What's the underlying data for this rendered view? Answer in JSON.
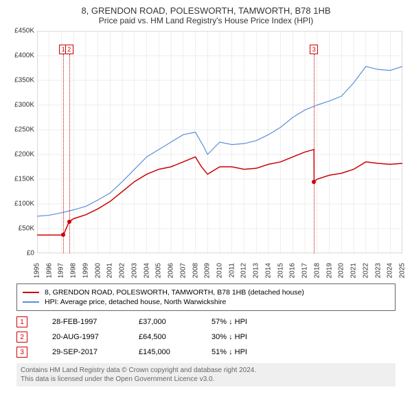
{
  "title": "8, GRENDON ROAD, POLESWORTH, TAMWORTH, B78 1HB",
  "subtitle": "Price paid vs. HM Land Registry's House Price Index (HPI)",
  "chart": {
    "type": "line",
    "background_color": "#ffffff",
    "plot_border_color": "#888888",
    "grid_color": "#dddddd",
    "y_axis": {
      "min": 0,
      "max": 450000,
      "tick_step": 50000,
      "labels": [
        "£0",
        "£50K",
        "£100K",
        "£150K",
        "£200K",
        "£250K",
        "£300K",
        "£350K",
        "£400K",
        "£450K"
      ],
      "label_fontsize": 10
    },
    "x_axis": {
      "years": [
        1995,
        1996,
        1997,
        1998,
        1999,
        2000,
        2001,
        2002,
        2003,
        2004,
        2005,
        2006,
        2007,
        2008,
        2009,
        2010,
        2011,
        2012,
        2013,
        2014,
        2015,
        2016,
        2017,
        2018,
        2019,
        2020,
        2021,
        2022,
        2023,
        2024,
        2025
      ],
      "label_fontsize": 10
    },
    "series": [
      {
        "name": "price_paid",
        "label": "8, GRENDON ROAD, POLESWORTH, TAMWORTH, B78 1HB (detached house)",
        "color": "#cc0000",
        "line_width": 1.5,
        "points": [
          [
            1995,
            37000
          ],
          [
            1996,
            37000
          ],
          [
            1997.16,
            37000
          ],
          [
            1997.64,
            64500
          ],
          [
            1998,
            70000
          ],
          [
            1999,
            78000
          ],
          [
            2000,
            90000
          ],
          [
            2001,
            105000
          ],
          [
            2002,
            125000
          ],
          [
            2003,
            145000
          ],
          [
            2004,
            160000
          ],
          [
            2005,
            170000
          ],
          [
            2006,
            175000
          ],
          [
            2007,
            185000
          ],
          [
            2008,
            195000
          ],
          [
            2008.5,
            175000
          ],
          [
            2009,
            160000
          ],
          [
            2010,
            175000
          ],
          [
            2011,
            175000
          ],
          [
            2012,
            170000
          ],
          [
            2013,
            172000
          ],
          [
            2014,
            180000
          ],
          [
            2015,
            185000
          ],
          [
            2016,
            195000
          ],
          [
            2017,
            205000
          ],
          [
            2017.74,
            210000
          ],
          [
            2017.75,
            145000
          ],
          [
            2018,
            150000
          ],
          [
            2019,
            158000
          ],
          [
            2020,
            162000
          ],
          [
            2021,
            170000
          ],
          [
            2022,
            185000
          ],
          [
            2023,
            182000
          ],
          [
            2024,
            180000
          ],
          [
            2025,
            182000
          ]
        ]
      },
      {
        "name": "hpi",
        "label": "HPI: Average price, detached house, North Warwickshire",
        "color": "#5b8fd6",
        "line_width": 1.2,
        "points": [
          [
            1995,
            75000
          ],
          [
            1996,
            77000
          ],
          [
            1997,
            82000
          ],
          [
            1998,
            88000
          ],
          [
            1999,
            95000
          ],
          [
            2000,
            108000
          ],
          [
            2001,
            122000
          ],
          [
            2002,
            145000
          ],
          [
            2003,
            170000
          ],
          [
            2004,
            195000
          ],
          [
            2005,
            210000
          ],
          [
            2006,
            225000
          ],
          [
            2007,
            240000
          ],
          [
            2008,
            245000
          ],
          [
            2008.7,
            215000
          ],
          [
            2009,
            200000
          ],
          [
            2010,
            225000
          ],
          [
            2011,
            220000
          ],
          [
            2012,
            222000
          ],
          [
            2013,
            228000
          ],
          [
            2014,
            240000
          ],
          [
            2015,
            255000
          ],
          [
            2016,
            275000
          ],
          [
            2017,
            290000
          ],
          [
            2018,
            300000
          ],
          [
            2019,
            308000
          ],
          [
            2020,
            318000
          ],
          [
            2021,
            345000
          ],
          [
            2022,
            378000
          ],
          [
            2023,
            372000
          ],
          [
            2024,
            370000
          ],
          [
            2025,
            378000
          ]
        ]
      }
    ],
    "markers": [
      {
        "num": "1",
        "year": 1997.16,
        "price": 37000,
        "color": "#cc0000"
      },
      {
        "num": "2",
        "year": 1997.64,
        "price": 64500,
        "color": "#cc0000"
      },
      {
        "num": "3",
        "year": 2017.74,
        "price": 145000,
        "color": "#cc0000"
      }
    ]
  },
  "legend": {
    "items": [
      {
        "color": "#cc0000",
        "label": "8, GRENDON ROAD, POLESWORTH, TAMWORTH, B78 1HB (detached house)"
      },
      {
        "color": "#5b8fd6",
        "label": "HPI: Average price, detached house, North Warwickshire"
      }
    ]
  },
  "events": [
    {
      "num": "1",
      "date": "28-FEB-1997",
      "price": "£37,000",
      "hpi": "57% ↓ HPI"
    },
    {
      "num": "2",
      "date": "20-AUG-1997",
      "price": "£64,500",
      "hpi": "30% ↓ HPI"
    },
    {
      "num": "3",
      "date": "29-SEP-2017",
      "price": "£145,000",
      "hpi": "51% ↓ HPI"
    }
  ],
  "footer": {
    "line1": "Contains HM Land Registry data © Crown copyright and database right 2024.",
    "line2": "This data is licensed under the Open Government Licence v3.0."
  }
}
